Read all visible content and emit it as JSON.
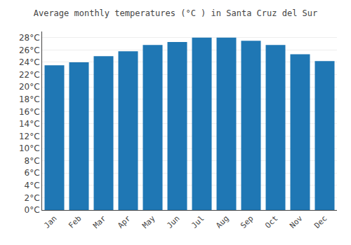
{
  "chart_data": {
    "type": "bar",
    "title": "Average monthly temperatures (°C ) in Santa Cruz del Sur",
    "categories": [
      "Jan",
      "Feb",
      "Mar",
      "Apr",
      "May",
      "Jun",
      "Jul",
      "Aug",
      "Sep",
      "Oct",
      "Nov",
      "Dec"
    ],
    "values": [
      23.5,
      24.0,
      25.0,
      25.8,
      26.8,
      27.3,
      28.0,
      28.0,
      27.5,
      26.8,
      25.3,
      24.2
    ],
    "ylim": [
      0,
      29
    ],
    "yticks": [
      {
        "value": 0,
        "label": "0°C"
      },
      {
        "value": 2,
        "label": "2°C"
      },
      {
        "value": 4,
        "label": "4°C"
      },
      {
        "value": 6,
        "label": "6°C"
      },
      {
        "value": 8,
        "label": "8°C"
      },
      {
        "value": 10,
        "label": "10°C"
      },
      {
        "value": 12,
        "label": "12°C"
      },
      {
        "value": 14,
        "label": "14°C"
      },
      {
        "value": 16,
        "label": "16°C"
      },
      {
        "value": 18,
        "label": "18°C"
      },
      {
        "value": 20,
        "label": "20°C"
      },
      {
        "value": 22,
        "label": "22°C"
      },
      {
        "value": 24,
        "label": "24°C"
      },
      {
        "value": 26,
        "label": "26°C"
      },
      {
        "value": 28,
        "label": "28°C"
      }
    ],
    "grid": true
  }
}
